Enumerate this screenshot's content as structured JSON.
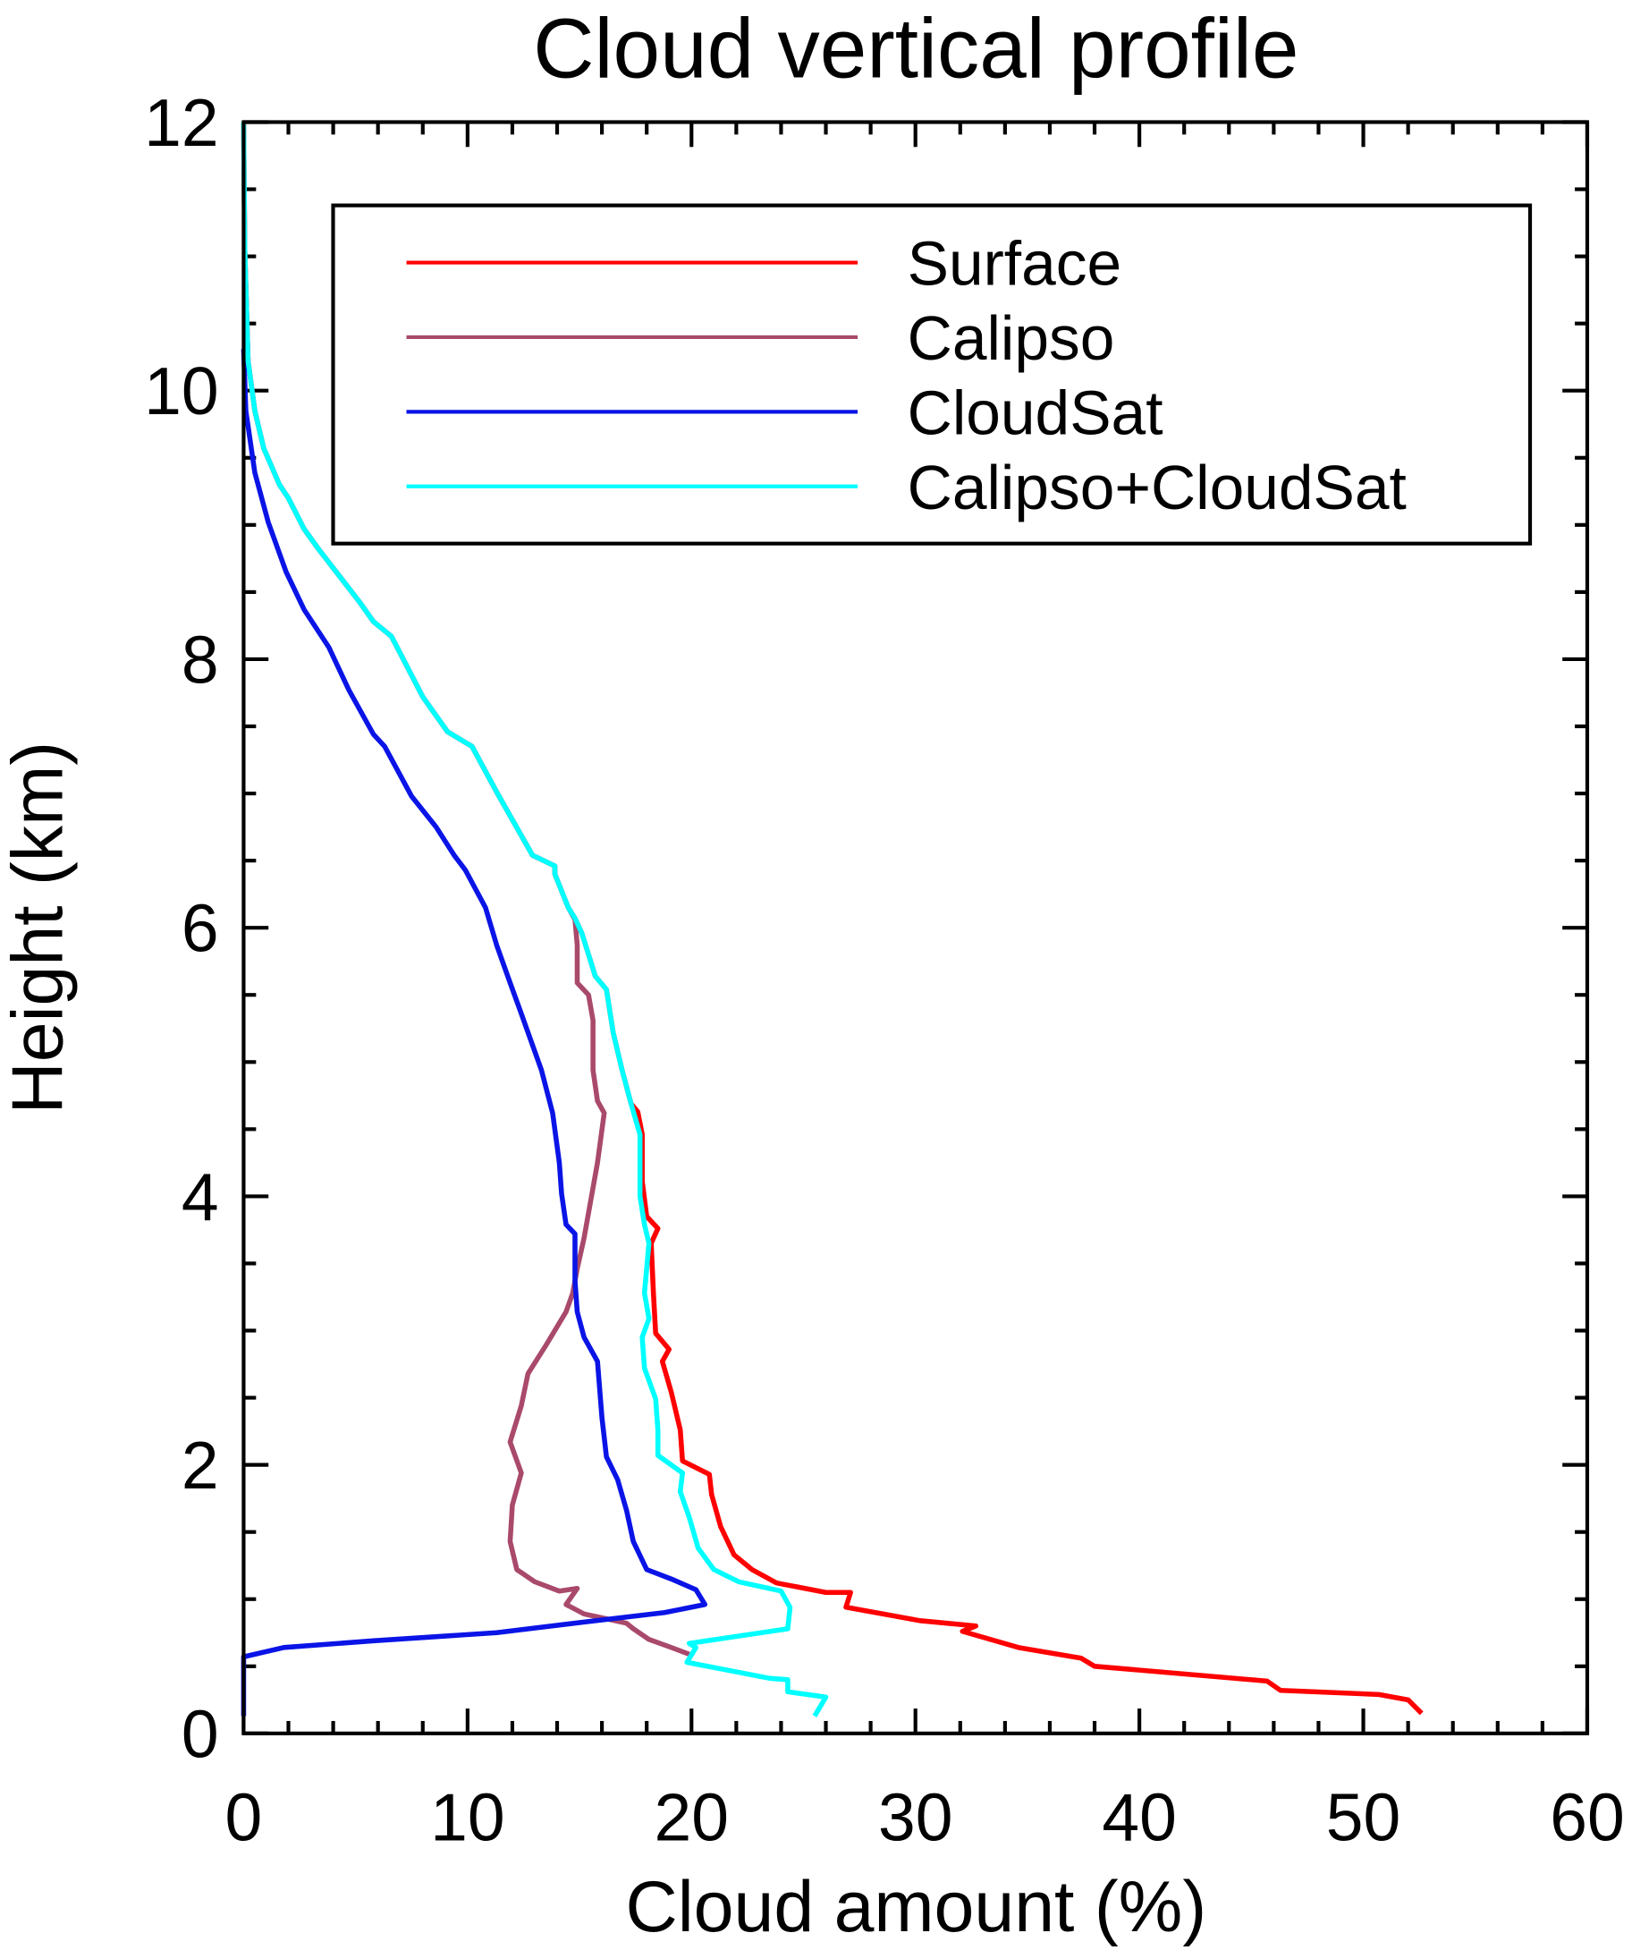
{
  "chart_data": {
    "type": "line",
    "title": "Cloud vertical profile",
    "x_label": "Cloud amount (%)",
    "y_label": "Height (km)",
    "xlim": [
      0,
      60
    ],
    "ylim": [
      0,
      12
    ],
    "xticks": [
      0,
      10,
      20,
      30,
      40,
      50,
      60
    ],
    "yticks": [
      0,
      2,
      4,
      6,
      8,
      10,
      12
    ],
    "legend": "upper right",
    "series": [
      {
        "name": "Surface",
        "color": "#ff0000",
        "x": [
          52.6,
          52.0,
          50.7,
          46.3,
          45.7,
          38.0,
          37.4,
          34.6,
          32.1,
          32.7,
          30.2,
          26.9,
          27.1,
          26.0,
          23.8,
          22.7,
          21.9,
          21.3,
          20.9,
          20.8,
          19.6,
          19.5,
          19.1,
          18.7,
          19.0,
          18.4,
          18.3,
          18.2,
          18.5,
          18.0,
          17.8,
          17.8,
          17.6,
          17.3,
          16.9,
          16.5,
          16.2,
          15.7,
          15.4,
          15.1,
          14.8,
          14.5,
          13.9,
          13.9,
          12.9,
          11.3,
          10.2,
          9.1,
          8.0,
          6.6,
          5.8,
          5.2,
          3.3,
          2.7,
          2.0,
          1.6,
          0.9,
          0.5,
          0.2,
          0.05,
          0
        ],
        "y": [
          0.15,
          0.25,
          0.29,
          0.32,
          0.39,
          0.5,
          0.56,
          0.64,
          0.76,
          0.8,
          0.84,
          0.94,
          1.05,
          1.05,
          1.12,
          1.22,
          1.33,
          1.54,
          1.78,
          1.93,
          2.03,
          2.26,
          2.54,
          2.77,
          2.86,
          2.98,
          3.28,
          3.65,
          3.76,
          3.85,
          4.11,
          4.46,
          4.63,
          4.69,
          4.94,
          5.22,
          5.54,
          5.64,
          5.8,
          5.96,
          6.07,
          6.15,
          6.4,
          6.46,
          6.54,
          7.01,
          7.35,
          7.46,
          7.72,
          8.17,
          8.28,
          8.42,
          8.83,
          8.97,
          9.2,
          9.3,
          9.57,
          9.85,
          10.22,
          11.06,
          12
        ]
      },
      {
        "name": "Calipso",
        "color": "#a9496b",
        "x": [
          19.9,
          19.1,
          18.1,
          17.4,
          17.1,
          16.3,
          15.2,
          14.4,
          14.9,
          14.1,
          13.0,
          12.2,
          11.9,
          12.0,
          12.4,
          11.9,
          12.4,
          12.7,
          13.5,
          14.4,
          14.7,
          14.9,
          15.2,
          15.5,
          15.8,
          16.1,
          15.8,
          15.6,
          15.6,
          15.4,
          14.9,
          14.9,
          14.8,
          14.5,
          13.9,
          13.9,
          12.9,
          11.3,
          10.2,
          9.1,
          8.0,
          6.6,
          5.8,
          5.2,
          3.3,
          2.7,
          2.0,
          1.6,
          0.9,
          0.5,
          0.2,
          0.05,
          0
        ],
        "y": [
          0.59,
          0.64,
          0.7,
          0.78,
          0.82,
          0.85,
          0.89,
          0.96,
          1.08,
          1.06,
          1.13,
          1.22,
          1.43,
          1.7,
          1.94,
          2.17,
          2.44,
          2.68,
          2.89,
          3.14,
          3.28,
          3.46,
          3.69,
          3.97,
          4.25,
          4.62,
          4.71,
          4.94,
          5.31,
          5.5,
          5.59,
          5.87,
          6.06,
          6.15,
          6.4,
          6.46,
          6.54,
          7.01,
          7.35,
          7.46,
          7.72,
          8.17,
          8.28,
          8.42,
          8.83,
          8.97,
          9.2,
          9.3,
          9.57,
          9.85,
          10.22,
          11.06,
          12
        ]
      },
      {
        "name": "CloudSat",
        "color": "#0a14e6",
        "x": [
          0,
          0,
          1.8,
          5.8,
          11.3,
          15.2,
          18.8,
          20.6,
          20.2,
          19.1,
          18.0,
          17.4,
          17.1,
          16.7,
          16.2,
          16.0,
          15.8,
          15.2,
          14.9,
          14.8,
          14.8,
          14.4,
          14.2,
          14.1,
          13.8,
          13.3,
          12.4,
          11.9,
          11.3,
          10.8,
          9.9,
          9.4,
          8.6,
          7.5,
          6.3,
          5.8,
          4.7,
          3.8,
          2.7,
          1.9,
          1.1,
          0.5,
          0.1,
          0
        ],
        "y": [
          0.13,
          0.57,
          0.64,
          0.69,
          0.75,
          0.83,
          0.9,
          0.96,
          1.07,
          1.15,
          1.22,
          1.43,
          1.66,
          1.89,
          2.06,
          2.35,
          2.77,
          2.95,
          3.14,
          3.37,
          3.72,
          3.79,
          4.02,
          4.25,
          4.62,
          4.94,
          5.36,
          5.59,
          5.87,
          6.15,
          6.43,
          6.54,
          6.75,
          6.98,
          7.35,
          7.44,
          7.77,
          8.09,
          8.37,
          8.65,
          9.02,
          9.39,
          9.85,
          10.31
        ]
      },
      {
        "name": "Calipso+CloudSat",
        "color": "#00ffff",
        "x": [
          25.5,
          26.0,
          24.3,
          24.3,
          23.5,
          19.8,
          20.2,
          19.9,
          24.3,
          24.4,
          24.0,
          22.1,
          21.0,
          20.3,
          19.9,
          19.5,
          19.6,
          18.5,
          18.5,
          18.4,
          17.9,
          17.8,
          18.1,
          17.9,
          18.1,
          17.9,
          17.7,
          17.7,
          17.3,
          16.9,
          16.5,
          16.2,
          15.7,
          15.4,
          15.1,
          14.8,
          14.5,
          13.9,
          13.9,
          12.9,
          11.3,
          10.2,
          9.1,
          8.0,
          6.6,
          5.8,
          5.2,
          3.3,
          2.7,
          2.0,
          1.6,
          0.9,
          0.5,
          0.2,
          0.05,
          0
        ],
        "y": [
          0.13,
          0.27,
          0.31,
          0.4,
          0.41,
          0.53,
          0.64,
          0.67,
          0.78,
          0.94,
          1.06,
          1.13,
          1.22,
          1.38,
          1.61,
          1.8,
          1.94,
          2.07,
          2.26,
          2.49,
          2.72,
          2.95,
          3.09,
          3.28,
          3.65,
          3.79,
          4.0,
          4.46,
          4.69,
          4.94,
          5.22,
          5.54,
          5.64,
          5.8,
          5.96,
          6.07,
          6.15,
          6.4,
          6.46,
          6.54,
          7.01,
          7.35,
          7.46,
          7.72,
          8.17,
          8.28,
          8.42,
          8.83,
          8.97,
          9.2,
          9.3,
          9.57,
          9.85,
          10.22,
          11.06,
          12
        ]
      }
    ]
  }
}
